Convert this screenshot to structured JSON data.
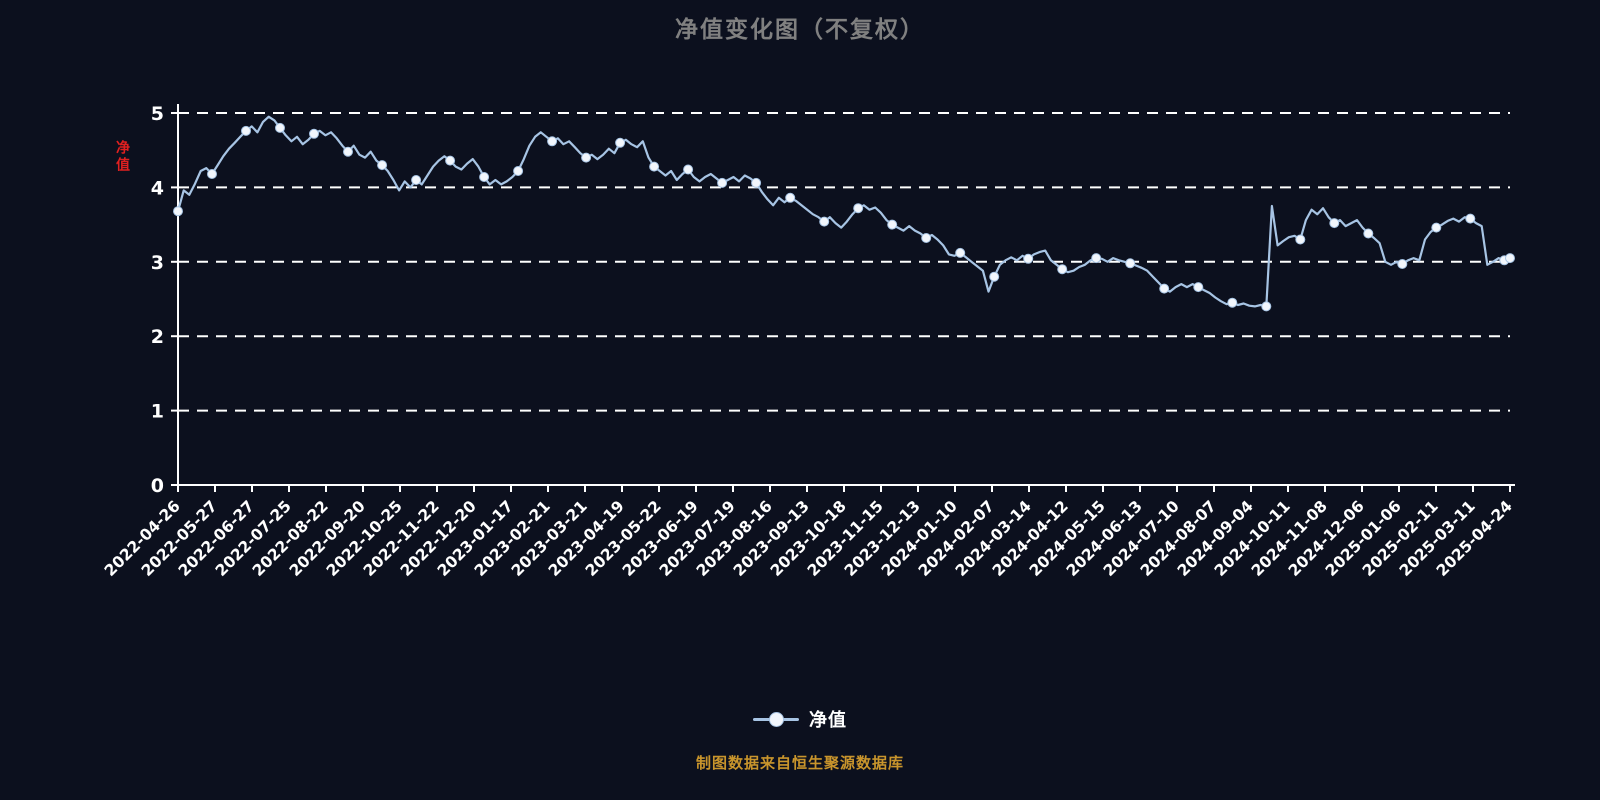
{
  "title": "净值变化图（不复权）",
  "y_axis_unit_label": "净值",
  "legend": {
    "series_label": "净值"
  },
  "source_note": "制图数据来自恒生聚源数据库",
  "colors": {
    "background": "#0c101e",
    "line": "#a7c4e4",
    "marker_fill": "#f2f6fc",
    "grid": "#ffffff",
    "axis": "#ffffff",
    "tick_label": "#ffffff",
    "title": "#808080",
    "unit_label": "#e02020",
    "source": "#c9952c"
  },
  "chart_data": {
    "type": "line",
    "title": "净值变化图（不复权）",
    "series_name": "净值",
    "legend_position": "bottom-center",
    "grid": "dashed-horizontal",
    "ylim": [
      0,
      5
    ],
    "yticks": [
      0,
      1,
      2,
      3,
      4,
      5
    ],
    "marker_every": 6,
    "categories": [
      "2022-04-26",
      "2022-05-27",
      "2022-06-27",
      "2022-07-25",
      "2022-08-22",
      "2022-09-20",
      "2022-10-25",
      "2022-11-22",
      "2022-12-20",
      "2023-01-17",
      "2023-02-21",
      "2023-03-21",
      "2023-04-19",
      "2023-05-22",
      "2023-06-19",
      "2023-07-19",
      "2023-08-16",
      "2023-09-13",
      "2023-10-18",
      "2023-11-15",
      "2023-12-13",
      "2024-01-10",
      "2024-02-07",
      "2024-03-14",
      "2024-04-12",
      "2024-05-15",
      "2024-06-13",
      "2024-07-10",
      "2024-08-07",
      "2024-09-04",
      "2024-10-11",
      "2024-11-08",
      "2024-12-06",
      "2025-01-06",
      "2025-02-11",
      "2025-03-11",
      "2025-04-24"
    ],
    "values": [
      3.68,
      3.96,
      3.9,
      4.05,
      4.22,
      4.26,
      4.18,
      4.3,
      4.42,
      4.52,
      4.6,
      4.68,
      4.76,
      4.82,
      4.74,
      4.88,
      4.95,
      4.9,
      4.8,
      4.7,
      4.62,
      4.68,
      4.58,
      4.64,
      4.72,
      4.76,
      4.7,
      4.74,
      4.66,
      4.56,
      4.48,
      4.56,
      4.44,
      4.4,
      4.48,
      4.36,
      4.3,
      4.22,
      4.1,
      3.96,
      4.08,
      4.0,
      4.1,
      4.04,
      4.16,
      4.28,
      4.36,
      4.42,
      4.36,
      4.28,
      4.24,
      4.32,
      4.38,
      4.28,
      4.14,
      4.04,
      4.1,
      4.04,
      4.08,
      4.14,
      4.22,
      4.38,
      4.56,
      4.68,
      4.74,
      4.68,
      4.62,
      4.66,
      4.58,
      4.62,
      4.54,
      4.46,
      4.4,
      4.44,
      4.38,
      4.44,
      4.52,
      4.46,
      4.6,
      4.64,
      4.58,
      4.54,
      4.62,
      4.4,
      4.28,
      4.22,
      4.16,
      4.22,
      4.1,
      4.18,
      4.24,
      4.14,
      4.08,
      4.14,
      4.18,
      4.12,
      4.06,
      4.1,
      4.14,
      4.08,
      4.16,
      4.12,
      4.06,
      3.94,
      3.84,
      3.76,
      3.86,
      3.8,
      3.86,
      3.82,
      3.76,
      3.7,
      3.64,
      3.6,
      3.54,
      3.6,
      3.52,
      3.46,
      3.54,
      3.64,
      3.72,
      3.76,
      3.7,
      3.73,
      3.66,
      3.56,
      3.5,
      3.46,
      3.42,
      3.48,
      3.42,
      3.38,
      3.32,
      3.36,
      3.3,
      3.22,
      3.1,
      3.08,
      3.12,
      3.06,
      3.0,
      2.94,
      2.88,
      2.6,
      2.8,
      2.96,
      3.02,
      3.06,
      3.02,
      3.08,
      3.04,
      3.1,
      3.13,
      3.15,
      3.02,
      2.96,
      2.9,
      2.86,
      2.88,
      2.93,
      2.96,
      3.02,
      3.05,
      3.04,
      3.0,
      3.05,
      3.02,
      3.0,
      2.98,
      2.95,
      2.92,
      2.88,
      2.8,
      2.72,
      2.64,
      2.6,
      2.66,
      2.7,
      2.66,
      2.7,
      2.66,
      2.62,
      2.58,
      2.52,
      2.47,
      2.43,
      2.45,
      2.42,
      2.44,
      2.41,
      2.4,
      2.42,
      2.4,
      3.75,
      3.22,
      3.28,
      3.33,
      3.35,
      3.3,
      3.56,
      3.7,
      3.64,
      3.72,
      3.6,
      3.52,
      3.56,
      3.48,
      3.52,
      3.56,
      3.46,
      3.38,
      3.32,
      3.25,
      3.0,
      2.96,
      3.0,
      2.97,
      3.02,
      3.05,
      3.02,
      3.3,
      3.4,
      3.46,
      3.5,
      3.55,
      3.58,
      3.54,
      3.6,
      3.58,
      3.52,
      3.48,
      2.96,
      3.0,
      3.05,
      3.02,
      3.05
    ]
  }
}
